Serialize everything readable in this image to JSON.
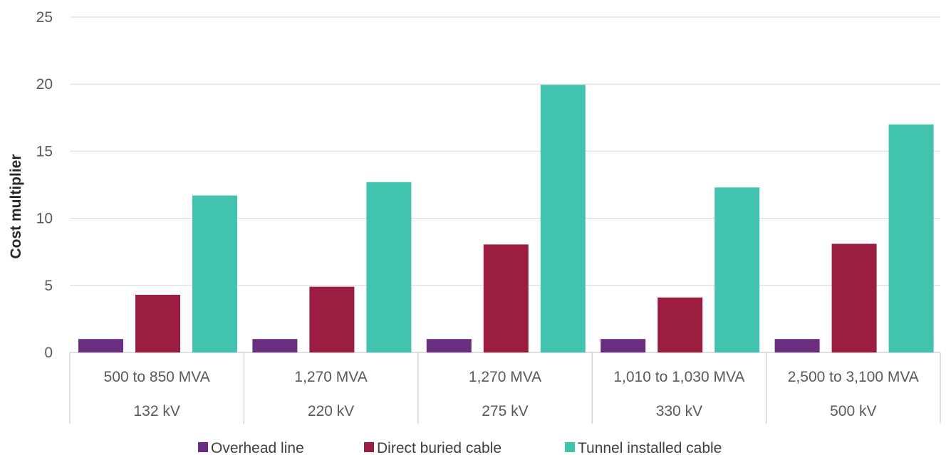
{
  "chart_data": {
    "type": "bar",
    "ylabel": "Cost multiplier",
    "ylim": [
      0,
      25
    ],
    "yticks": [
      0,
      5,
      10,
      15,
      20,
      25
    ],
    "grid": true,
    "legend_position": "bottom",
    "categories": [
      {
        "capacity": "500 to 850 MVA",
        "voltage": "132 kV"
      },
      {
        "capacity": "1,270 MVA",
        "voltage": "220 kV"
      },
      {
        "capacity": "1,270 MVA",
        "voltage": "275 kV"
      },
      {
        "capacity": "1,010 to 1,030 MVA",
        "voltage": "330 kV"
      },
      {
        "capacity": "2,500 to 3,100 MVA",
        "voltage": "500 kV"
      }
    ],
    "series": [
      {
        "name": "Overhead line",
        "color": "#6b2d7f",
        "values": [
          1,
          1,
          1,
          1,
          1
        ]
      },
      {
        "name": "Direct buried cable",
        "color": "#9b1d40",
        "values": [
          4.3,
          4.9,
          8.05,
          4.1,
          8.1
        ]
      },
      {
        "name": "Tunnel installed cable",
        "color": "#41c3ad",
        "values": [
          11.7,
          12.7,
          19.95,
          12.3,
          17.0
        ]
      }
    ]
  }
}
